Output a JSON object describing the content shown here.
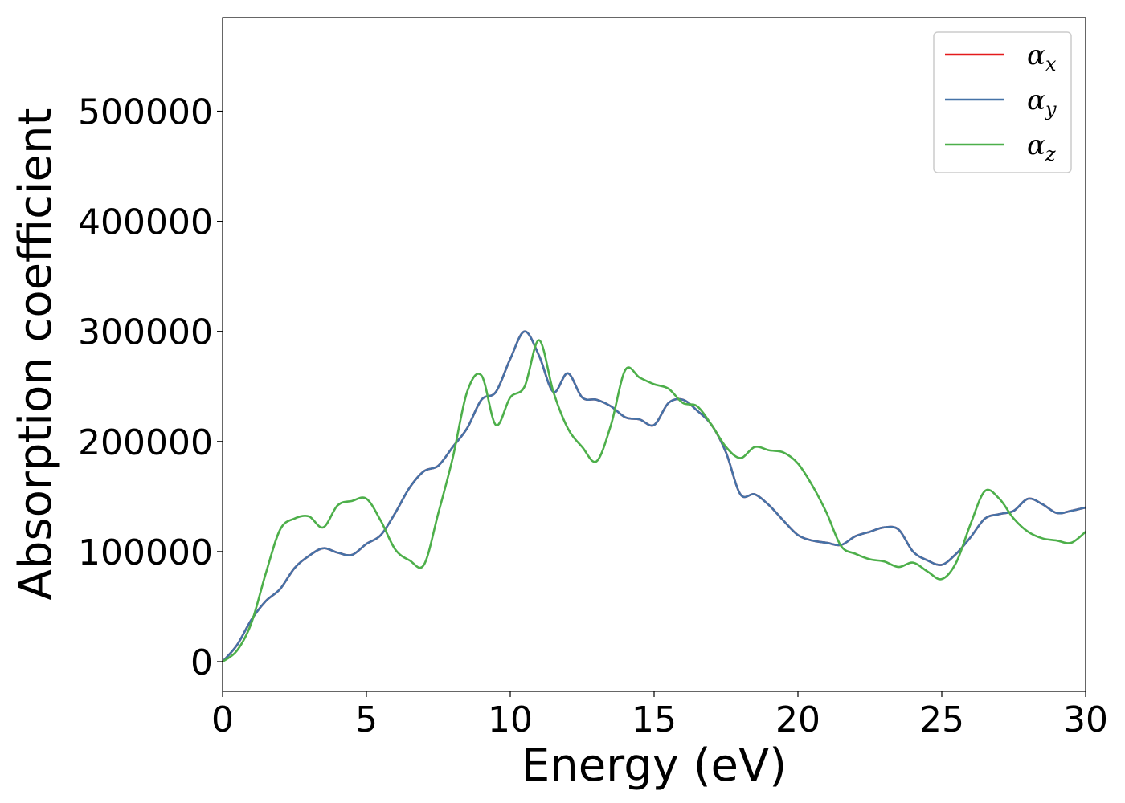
{
  "chart_data": {
    "type": "line",
    "title": "",
    "xlabel": "Energy (eV)",
    "ylabel": "Absorption coefficient",
    "xlim": [
      0,
      30
    ],
    "ylim": [
      -27000,
      585000
    ],
    "xticks": [
      0,
      5,
      10,
      15,
      20,
      25,
      30
    ],
    "xtick_labels": [
      "0",
      "5",
      "10",
      "15",
      "20",
      "25",
      "30"
    ],
    "yticks": [
      0,
      100000,
      200000,
      300000,
      400000,
      500000
    ],
    "ytick_labels": [
      "0",
      "100000",
      "200000",
      "300000",
      "400000",
      "500000"
    ],
    "grid": false,
    "legend_position": "top-right",
    "series": [
      {
        "name": "α",
        "subscript": "x",
        "color": "#e41a1c",
        "x": [
          0,
          0.5,
          1,
          1.5,
          2,
          2.5,
          3,
          3.5,
          4,
          4.5,
          5,
          5.5,
          6,
          6.5,
          7,
          7.5,
          8,
          8.5,
          9,
          9.5,
          10,
          10.5,
          11,
          11.5,
          12,
          12.5,
          13,
          13.5,
          14,
          14.5,
          15,
          15.5,
          16,
          16.5,
          17,
          17.5,
          18,
          18.5,
          19,
          19.5,
          20,
          20.5,
          21,
          21.5,
          22,
          22.5,
          23,
          23.5,
          24,
          24.5,
          25,
          25.5,
          26,
          26.5,
          27,
          27.5,
          28,
          28.5,
          29,
          29.5,
          30
        ],
        "y": [
          0,
          15000,
          38000,
          55000,
          66000,
          85000,
          96000,
          103000,
          99000,
          97000,
          107000,
          115000,
          135000,
          158000,
          173000,
          178000,
          195000,
          212000,
          238000,
          245000,
          275000,
          300000,
          278000,
          245000,
          262000,
          240000,
          238000,
          232000,
          222000,
          220000,
          215000,
          235000,
          238000,
          228000,
          215000,
          190000,
          152000,
          152000,
          142000,
          128000,
          115000,
          110000,
          108000,
          106000,
          114000,
          118000,
          122000,
          120000,
          100000,
          92000,
          88000,
          98000,
          113000,
          130000,
          134000,
          137000,
          148000,
          143000,
          135000,
          137000,
          140000
        ]
      },
      {
        "name": "α",
        "subscript": "y",
        "color": "#4572a7",
        "x": [
          0,
          0.5,
          1,
          1.5,
          2,
          2.5,
          3,
          3.5,
          4,
          4.5,
          5,
          5.5,
          6,
          6.5,
          7,
          7.5,
          8,
          8.5,
          9,
          9.5,
          10,
          10.5,
          11,
          11.5,
          12,
          12.5,
          13,
          13.5,
          14,
          14.5,
          15,
          15.5,
          16,
          16.5,
          17,
          17.5,
          18,
          18.5,
          19,
          19.5,
          20,
          20.5,
          21,
          21.5,
          22,
          22.5,
          23,
          23.5,
          24,
          24.5,
          25,
          25.5,
          26,
          26.5,
          27,
          27.5,
          28,
          28.5,
          29,
          29.5,
          30
        ],
        "y": [
          0,
          15000,
          38000,
          55000,
          66000,
          85000,
          96000,
          103000,
          99000,
          97000,
          107000,
          115000,
          135000,
          158000,
          173000,
          178000,
          195000,
          212000,
          238000,
          245000,
          275000,
          300000,
          278000,
          245000,
          262000,
          240000,
          238000,
          232000,
          222000,
          220000,
          215000,
          235000,
          238000,
          228000,
          215000,
          190000,
          152000,
          152000,
          142000,
          128000,
          115000,
          110000,
          108000,
          106000,
          114000,
          118000,
          122000,
          120000,
          100000,
          92000,
          88000,
          98000,
          113000,
          130000,
          134000,
          137000,
          148000,
          143000,
          135000,
          137000,
          140000
        ]
      },
      {
        "name": "α",
        "subscript": "z",
        "color": "#4daf4a",
        "x": [
          0,
          0.5,
          1,
          1.5,
          2,
          2.5,
          3,
          3.5,
          4,
          4.5,
          5,
          5.5,
          6,
          6.5,
          7,
          7.5,
          8,
          8.5,
          9,
          9.5,
          10,
          10.5,
          11,
          11.5,
          12,
          12.5,
          13,
          13.5,
          14,
          14.5,
          15,
          15.5,
          16,
          16.5,
          17,
          17.5,
          18,
          18.5,
          19,
          19.5,
          20,
          20.5,
          21,
          21.5,
          22,
          22.5,
          23,
          23.5,
          24,
          24.5,
          25,
          25.5,
          26,
          26.5,
          27,
          27.5,
          28,
          28.5,
          29,
          29.5,
          30
        ],
        "y": [
          0,
          10000,
          35000,
          80000,
          120000,
          130000,
          132000,
          122000,
          142000,
          146000,
          148000,
          128000,
          102000,
          92000,
          88000,
          135000,
          185000,
          245000,
          260000,
          215000,
          240000,
          250000,
          292000,
          245000,
          212000,
          195000,
          182000,
          215000,
          265000,
          258000,
          252000,
          248000,
          235000,
          232000,
          215000,
          195000,
          185000,
          195000,
          192000,
          190000,
          180000,
          160000,
          135000,
          105000,
          98000,
          93000,
          91000,
          86000,
          90000,
          82000,
          75000,
          90000,
          125000,
          155000,
          148000,
          130000,
          118000,
          112000,
          110000,
          108000,
          118000
        ]
      }
    ]
  }
}
